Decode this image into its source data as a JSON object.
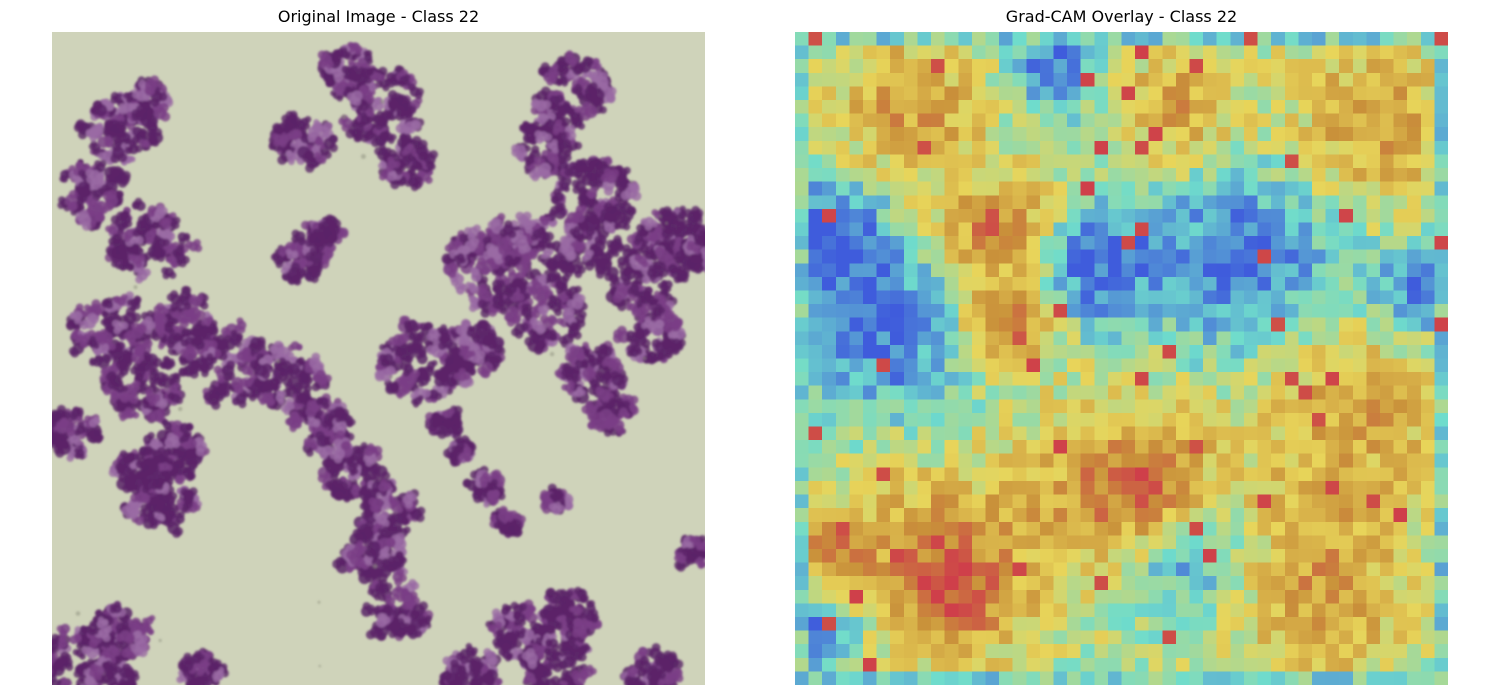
{
  "figure": {
    "left_title": "Original Image - Class 22",
    "right_title": "Grad-CAM Overlay - Class 22"
  },
  "colors": {
    "background_slide": "#cfd3ba",
    "stain_dark": "#5b2468",
    "stain_mid": "#7a3f86",
    "stain_light": "#9a6aa4",
    "heat_blue": "#3f5cdc",
    "heat_cyan": "#6fdccc",
    "heat_yellow": "#e8d55a",
    "heat_orange": "#c9913a",
    "heat_red": "#cf3f4a"
  },
  "gradcam": {
    "grid_size": 48,
    "seed": 22
  }
}
